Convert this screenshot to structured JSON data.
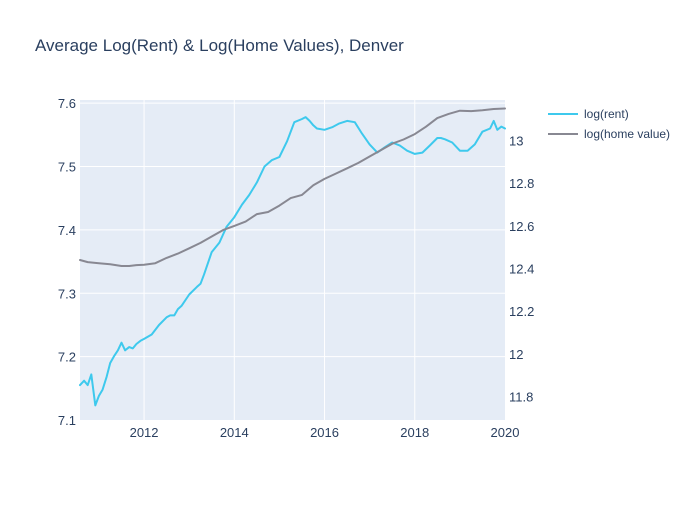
{
  "chart_data": {
    "type": "line",
    "title": "Average Log(Rent) & Log(Home Values), Denver",
    "xlabel": "",
    "ylabel": "",
    "y2label": "",
    "xlim": [
      2010.58,
      2020.0
    ],
    "ylim": [
      7.1,
      7.605
    ],
    "y2lim": [
      11.69,
      13.19
    ],
    "x_ticks": [
      2012,
      2014,
      2016,
      2018,
      2020
    ],
    "x_tick_labels": [
      "2012",
      "2014",
      "2016",
      "2018",
      "2020"
    ],
    "y_ticks": [
      7.1,
      7.2,
      7.3,
      7.4,
      7.5,
      7.6
    ],
    "y_tick_labels": [
      "7.1",
      "7.2",
      "7.3",
      "7.4",
      "7.5",
      "7.6"
    ],
    "y2_ticks": [
      11.8,
      12.0,
      12.2,
      12.4,
      12.6,
      12.8,
      13.0
    ],
    "y2_tick_labels": [
      "11.8",
      "12",
      "12.2",
      "12.4",
      "12.6",
      "12.8",
      "13"
    ],
    "grid": true,
    "legend_position": "top-right, outside plot",
    "colors": {
      "rent": "#3ec9ed",
      "home": "#888892",
      "plot_bg": "#e5ecf6",
      "grid": "#ffffff",
      "text": "#2a3f5f"
    },
    "series": [
      {
        "name": "log(rent)",
        "axis": "left",
        "color": "#3ec9ed",
        "x": [
          2010.58,
          2010.67,
          2010.75,
          2010.83,
          2010.92,
          2011.0,
          2011.08,
          2011.17,
          2011.25,
          2011.33,
          2011.42,
          2011.5,
          2011.58,
          2011.67,
          2011.75,
          2011.83,
          2011.92,
          2012.0,
          2012.17,
          2012.33,
          2012.5,
          2012.58,
          2012.67,
          2012.75,
          2012.83,
          2013.0,
          2013.17,
          2013.25,
          2013.33,
          2013.5,
          2013.67,
          2013.83,
          2014.0,
          2014.17,
          2014.33,
          2014.5,
          2014.67,
          2014.83,
          2015.0,
          2015.17,
          2015.33,
          2015.5,
          2015.58,
          2015.67,
          2015.75,
          2015.83,
          2016.0,
          2016.17,
          2016.33,
          2016.5,
          2016.67,
          2016.83,
          2017.0,
          2017.17,
          2017.33,
          2017.5,
          2017.67,
          2017.83,
          2018.0,
          2018.17,
          2018.33,
          2018.5,
          2018.58,
          2018.67,
          2018.83,
          2019.0,
          2019.17,
          2019.33,
          2019.5,
          2019.67,
          2019.75,
          2019.83,
          2019.92,
          2020.0
        ],
        "values": [
          7.155,
          7.162,
          7.155,
          7.172,
          7.123,
          7.138,
          7.148,
          7.168,
          7.19,
          7.2,
          7.21,
          7.222,
          7.21,
          7.215,
          7.213,
          7.22,
          7.225,
          7.228,
          7.235,
          7.25,
          7.262,
          7.265,
          7.265,
          7.275,
          7.28,
          7.298,
          7.31,
          7.315,
          7.33,
          7.365,
          7.38,
          7.405,
          7.42,
          7.44,
          7.455,
          7.475,
          7.5,
          7.51,
          7.515,
          7.54,
          7.57,
          7.575,
          7.578,
          7.572,
          7.565,
          7.56,
          7.558,
          7.562,
          7.568,
          7.572,
          7.57,
          7.552,
          7.535,
          7.522,
          7.53,
          7.538,
          7.533,
          7.525,
          7.52,
          7.522,
          7.533,
          7.545,
          7.545,
          7.543,
          7.538,
          7.525,
          7.525,
          7.535,
          7.555,
          7.56,
          7.572,
          7.558,
          7.563,
          7.56
        ]
      },
      {
        "name": "log(home value)",
        "axis": "right",
        "color": "#888892",
        "x": [
          2010.58,
          2010.75,
          2011.0,
          2011.25,
          2011.5,
          2011.67,
          2011.83,
          2012.0,
          2012.25,
          2012.5,
          2012.75,
          2013.0,
          2013.25,
          2013.5,
          2013.75,
          2014.0,
          2014.25,
          2014.5,
          2014.75,
          2015.0,
          2015.25,
          2015.5,
          2015.75,
          2016.0,
          2016.25,
          2016.5,
          2016.75,
          2017.0,
          2017.25,
          2017.5,
          2017.75,
          2018.0,
          2018.25,
          2018.5,
          2018.75,
          2019.0,
          2019.25,
          2019.5,
          2019.75,
          2020.0
        ],
        "values": [
          12.44,
          12.43,
          12.425,
          12.42,
          12.412,
          12.412,
          12.416,
          12.418,
          12.425,
          12.45,
          12.47,
          12.495,
          12.52,
          12.55,
          12.58,
          12.6,
          12.62,
          12.655,
          12.665,
          12.695,
          12.73,
          12.745,
          12.79,
          12.82,
          12.845,
          12.87,
          12.895,
          12.925,
          12.955,
          12.985,
          13.005,
          13.03,
          13.065,
          13.105,
          13.125,
          13.14,
          13.138,
          13.142,
          13.148,
          13.15
        ]
      }
    ]
  }
}
